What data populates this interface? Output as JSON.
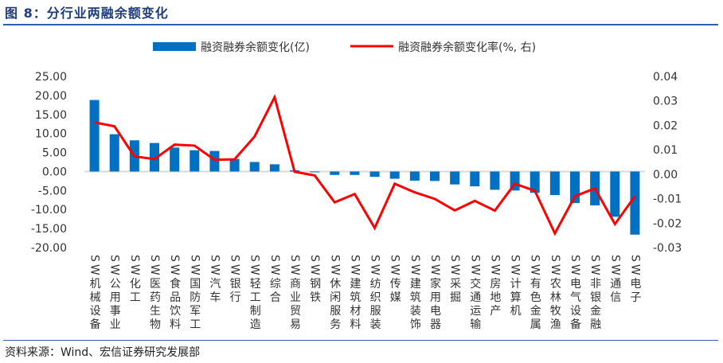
{
  "title": "图 8：分行业两融余额变化",
  "source": "资料来源：Wind、宏信证券研究发展部",
  "colors": {
    "bar": "#0070c0",
    "line": "#ff0000",
    "title": "#1f3d7a",
    "axis": "#d9d9d9"
  },
  "chart_data": {
    "type": "bar+line",
    "title": "分行业两融余额变化",
    "legend_position": "top",
    "categories": [
      "SW机械设备",
      "SW公用事业",
      "SW化工",
      "SW医药生物",
      "SW食品饮料",
      "SW国防军工",
      "SW汽车",
      "SW银行",
      "SW轻工制造",
      "SW综合",
      "SW商业贸易",
      "SW钢铁",
      "SW休闲服务",
      "SW建筑材料",
      "SW纺织服装",
      "SW传媒",
      "SW建筑装饰",
      "SW家用电器",
      "SW采掘",
      "SW交通运输",
      "SW房地产",
      "SW计算机",
      "SW有色金属",
      "SW农林牧渔",
      "SW电气设备",
      "SW非银金融",
      "SW通信",
      "SW电子"
    ],
    "series": [
      {
        "name": "融资融券余额变化(亿)",
        "type": "bar",
        "axis": "left",
        "values": [
          18.8,
          9.8,
          8.2,
          7.5,
          6.3,
          5.6,
          5.4,
          3.3,
          2.5,
          1.9,
          0.3,
          -0.1,
          -0.9,
          -0.9,
          -1.4,
          -1.9,
          -2.4,
          -2.5,
          -3.4,
          -3.9,
          -4.8,
          -5.0,
          -5.6,
          -6.2,
          -8.3,
          -8.9,
          -11.9,
          -16.6
        ]
      },
      {
        "name": "融资融券余额变化率(%, 右)",
        "type": "line",
        "axis": "right",
        "values": [
          0.0212,
          0.0196,
          0.0073,
          0.0062,
          0.0121,
          0.0117,
          0.0059,
          0.0061,
          0.0154,
          0.0315,
          0.001,
          -0.0005,
          -0.0115,
          -0.0081,
          -0.022,
          -0.0039,
          -0.0074,
          -0.0101,
          -0.0148,
          -0.0109,
          -0.0149,
          -0.0039,
          -0.0068,
          -0.0242,
          -0.009,
          -0.0058,
          -0.0204,
          -0.009
        ]
      }
    ],
    "y_left": {
      "range": [
        -20,
        25
      ],
      "ticks": [
        25,
        20,
        15,
        10,
        5,
        0,
        -5,
        -10,
        -15,
        -20
      ],
      "tick_labels": [
        "25.00",
        "20.00",
        "15.00",
        "10.00",
        "5.00",
        "0.00",
        "-5.00",
        "-10.00",
        "-15.00",
        "-20.00"
      ]
    },
    "y_right": {
      "range": [
        -0.03,
        0.04
      ],
      "ticks": [
        0.04,
        0.03,
        0.02,
        0.01,
        0,
        -0.01,
        -0.02,
        -0.03
      ],
      "tick_labels": [
        "0.04",
        "0.03",
        "0.02",
        "0.01",
        "0.00",
        "-0.01",
        "-0.02",
        "-0.03"
      ]
    },
    "grid": false
  }
}
